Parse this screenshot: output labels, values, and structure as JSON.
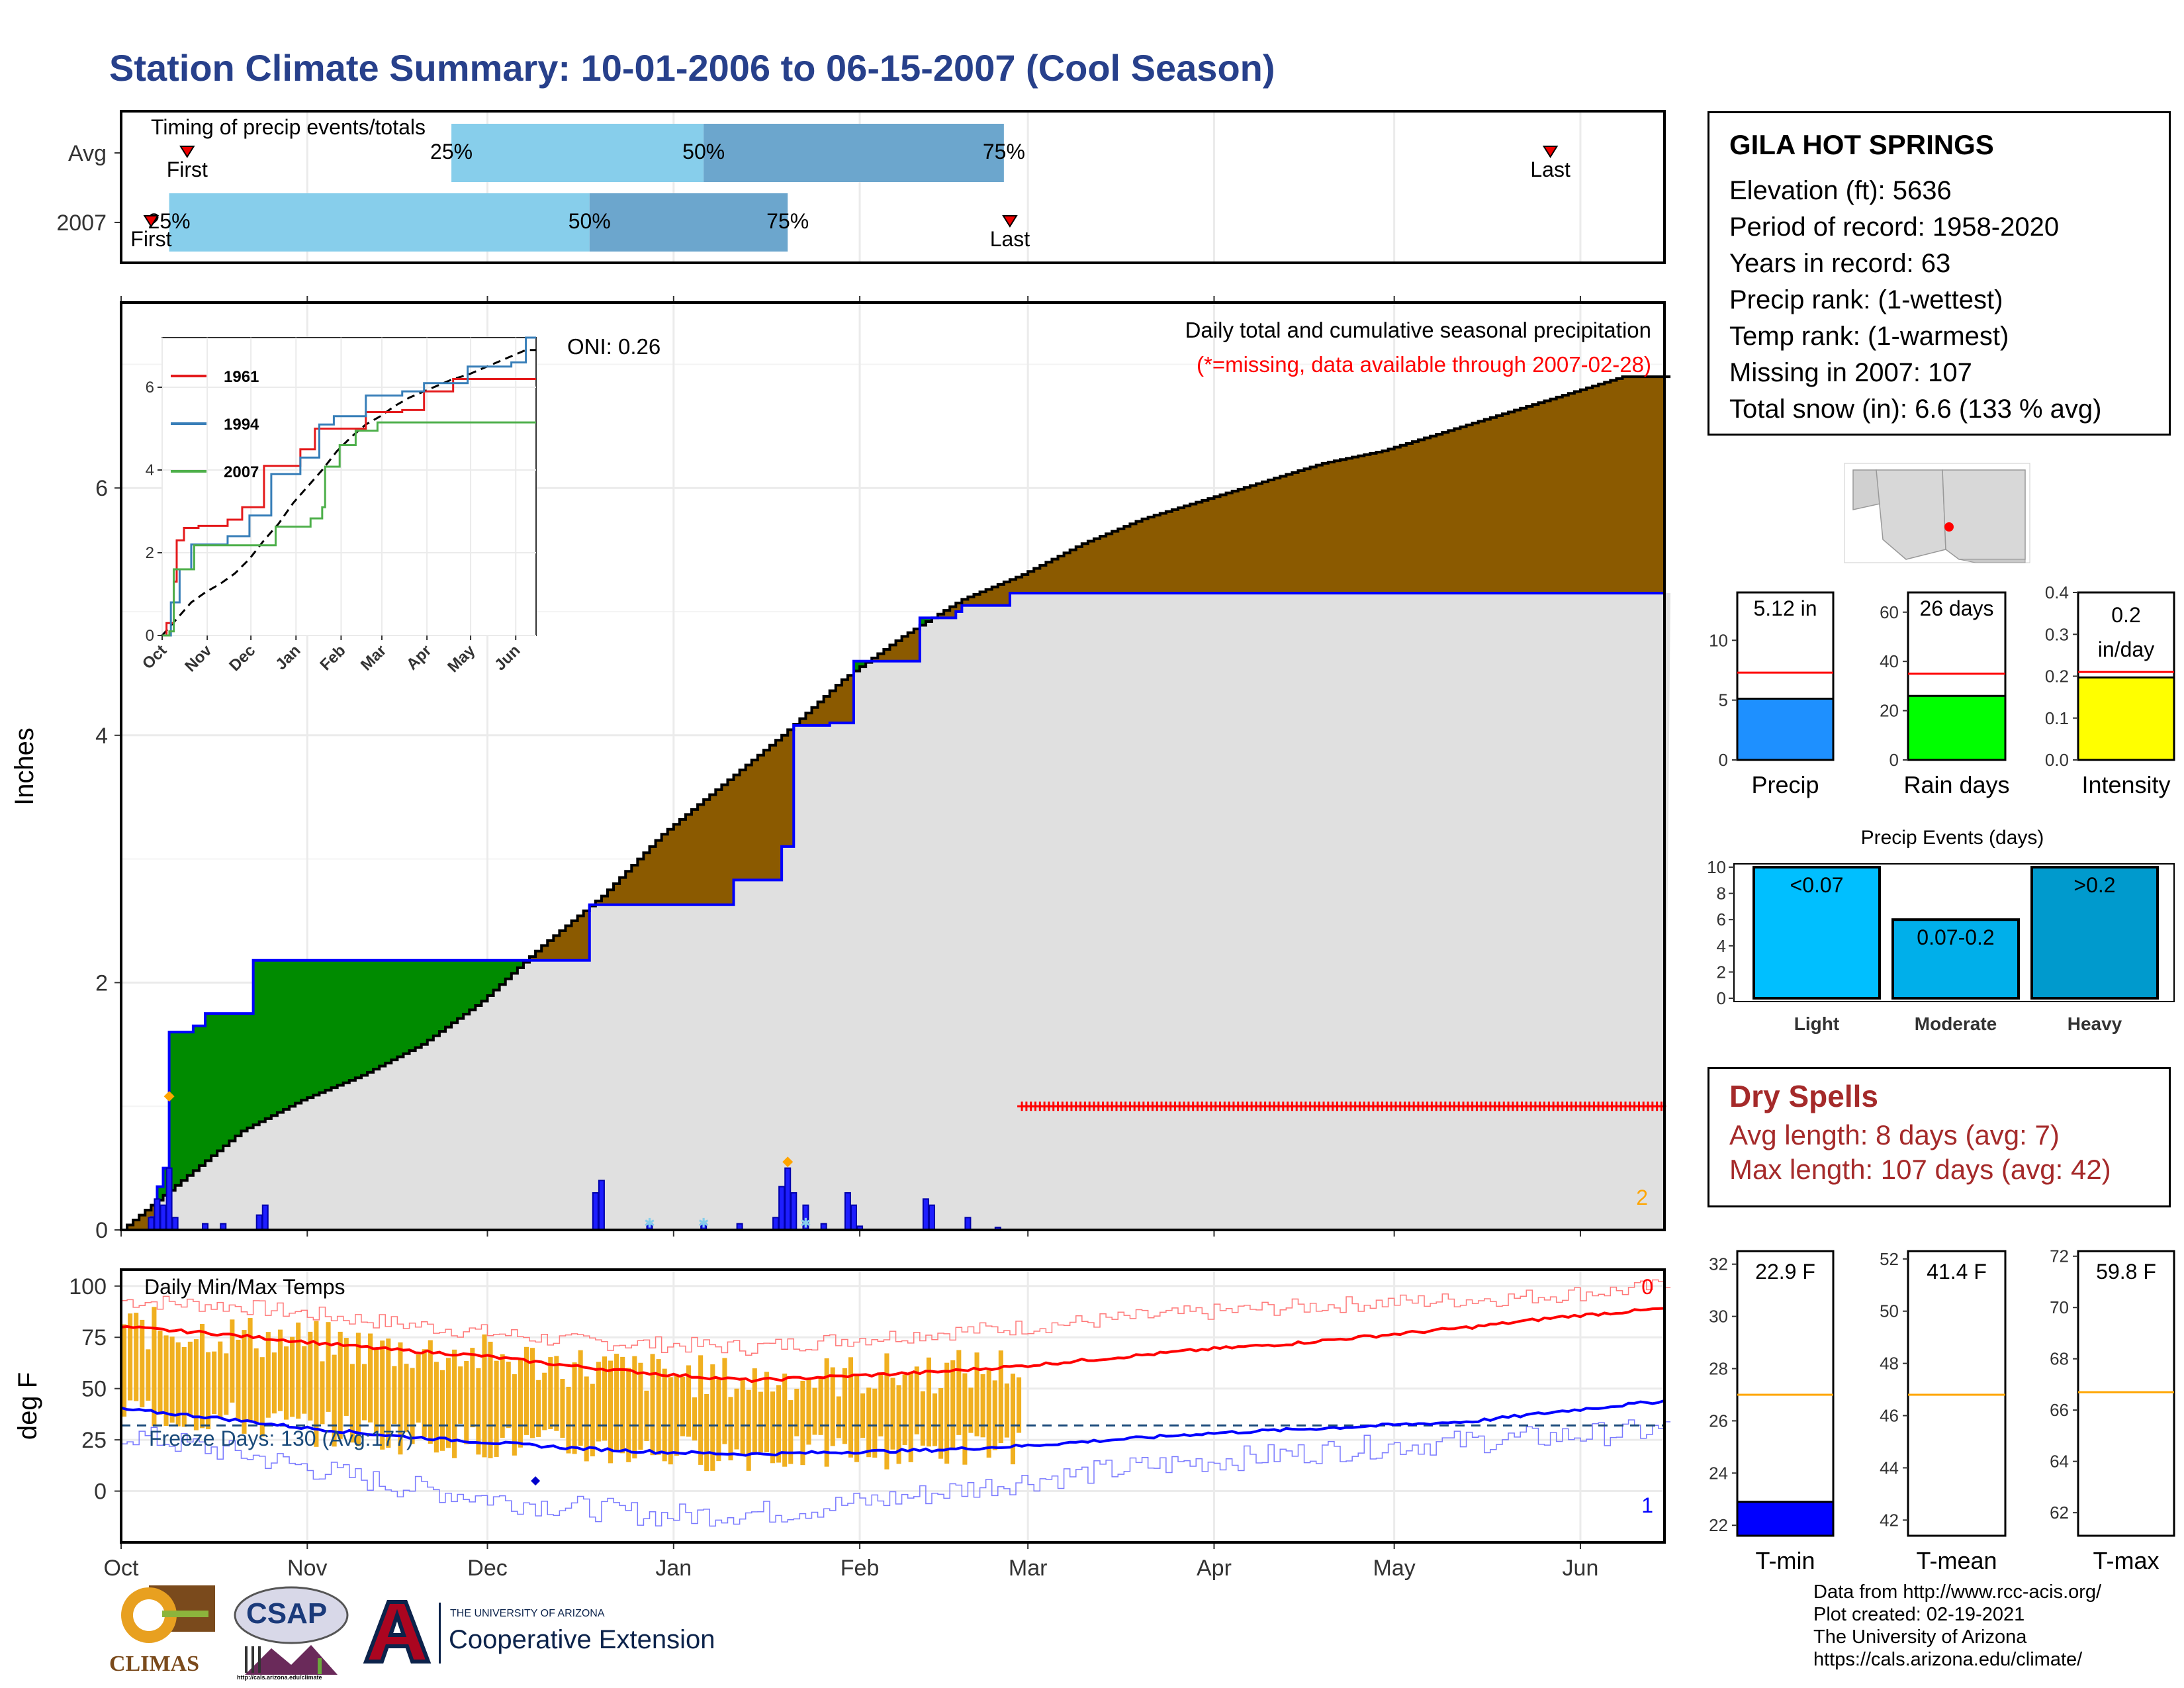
{
  "title": "Station Climate Summary: 10-01-2006 to 06-15-2007 (Cool Season)",
  "timing": {
    "label": "Timing of precip events/totals",
    "rows": [
      "Avg",
      "2007"
    ],
    "first_label": "First",
    "last_label": "Last",
    "pct_labels": [
      "25%",
      "50%",
      "75%"
    ],
    "avg": {
      "first_day": 11,
      "p25": 55,
      "p50": 97,
      "p75": 147,
      "last_day": 238
    },
    "y2007": {
      "first_day": 5,
      "p25": 8,
      "p50": 78,
      "p75": 111,
      "last_day": 148
    }
  },
  "main_plot": {
    "oni": "ONI: 0.26",
    "caption": "Daily total and cumulative seasonal precipitation",
    "missing_note": "(*=missing, data available through 2007-02-28)",
    "ylabel": "Inches",
    "yticks": [
      0,
      2,
      4,
      6
    ],
    "corner_count": "2",
    "xticks": [
      "Oct",
      "Nov",
      "Dec",
      "Jan",
      "Feb",
      "Mar",
      "Apr",
      "May",
      "Jun"
    ]
  },
  "chart_data": {
    "type": "area",
    "x_unit": "day of season starting 2006-10-01",
    "avg_cumulative": [
      [
        0,
        0
      ],
      [
        10,
        0.4
      ],
      [
        20,
        0.8
      ],
      [
        30,
        1.05
      ],
      [
        40,
        1.25
      ],
      [
        50,
        1.5
      ],
      [
        60,
        1.85
      ],
      [
        70,
        2.3
      ],
      [
        80,
        2.7
      ],
      [
        90,
        3.2
      ],
      [
        100,
        3.6
      ],
      [
        110,
        4.0
      ],
      [
        120,
        4.45
      ],
      [
        130,
        4.8
      ],
      [
        140,
        5.1
      ],
      [
        150,
        5.3
      ],
      [
        160,
        5.55
      ],
      [
        170,
        5.75
      ],
      [
        180,
        5.9
      ],
      [
        190,
        6.05
      ],
      [
        200,
        6.2
      ],
      [
        210,
        6.3
      ],
      [
        220,
        6.45
      ],
      [
        230,
        6.6
      ],
      [
        240,
        6.75
      ],
      [
        250,
        6.9
      ],
      [
        257,
        6.9
      ]
    ],
    "cumulative_2007": [
      [
        0,
        0
      ],
      [
        5,
        0.1
      ],
      [
        6,
        0.35
      ],
      [
        7,
        0.5
      ],
      [
        8,
        1.6
      ],
      [
        12,
        1.65
      ],
      [
        14,
        1.75
      ],
      [
        22,
        2.18
      ],
      [
        62,
        2.18
      ],
      [
        78,
        2.63
      ],
      [
        90,
        2.63
      ],
      [
        102,
        2.83
      ],
      [
        109,
        2.83
      ],
      [
        110,
        3.1
      ],
      [
        112,
        4.08
      ],
      [
        118,
        4.1
      ],
      [
        122,
        4.6
      ],
      [
        132,
        4.6
      ],
      [
        133,
        4.95
      ],
      [
        139,
        5.0
      ],
      [
        140,
        5.05
      ],
      [
        148,
        5.15
      ],
      [
        257,
        5.15
      ]
    ],
    "daily_2007": [
      [
        5,
        0.1
      ],
      [
        6,
        0.25
      ],
      [
        7,
        0.2
      ],
      [
        8,
        0.5
      ],
      [
        9,
        0.1
      ],
      [
        14,
        0.05
      ],
      [
        17,
        0.05
      ],
      [
        23,
        0.12
      ],
      [
        24,
        0.2
      ],
      [
        79,
        0.3
      ],
      [
        80,
        0.4
      ],
      [
        88,
        0.05
      ],
      [
        97,
        0.05
      ],
      [
        103,
        0.05
      ],
      [
        109,
        0.1
      ],
      [
        110,
        0.35
      ],
      [
        111,
        0.5
      ],
      [
        112,
        0.3
      ],
      [
        114,
        0.2
      ],
      [
        117,
        0.05
      ],
      [
        121,
        0.3
      ],
      [
        122,
        0.2
      ],
      [
        123,
        0.03
      ],
      [
        134,
        0.25
      ],
      [
        135,
        0.2
      ],
      [
        141,
        0.1
      ],
      [
        146,
        0.02
      ]
    ],
    "missing_range_days": [
      150,
      257
    ],
    "ylim": [
      0,
      7.5
    ]
  },
  "inset": {
    "series": [
      {
        "name": "1961",
        "color": "#e41a1c",
        "points": [
          [
            0,
            0
          ],
          [
            3,
            0.3
          ],
          [
            8,
            1.3
          ],
          [
            10,
            2.3
          ],
          [
            15,
            2.6
          ],
          [
            25,
            2.65
          ],
          [
            45,
            2.8
          ],
          [
            55,
            3.1
          ],
          [
            70,
            4.1
          ],
          [
            95,
            4.5
          ],
          [
            105,
            5.0
          ],
          [
            120,
            5.0
          ],
          [
            140,
            5.4
          ],
          [
            165,
            5.45
          ],
          [
            180,
            5.9
          ],
          [
            200,
            6.2
          ],
          [
            257,
            6.2
          ]
        ]
      },
      {
        "name": "1994",
        "color": "#377eb8",
        "points": [
          [
            0,
            0
          ],
          [
            6,
            0.8
          ],
          [
            12,
            1.6
          ],
          [
            20,
            2.2
          ],
          [
            45,
            2.4
          ],
          [
            60,
            2.9
          ],
          [
            75,
            3.9
          ],
          [
            95,
            4.3
          ],
          [
            108,
            5.1
          ],
          [
            118,
            5.3
          ],
          [
            140,
            5.8
          ],
          [
            165,
            5.9
          ],
          [
            180,
            6.1
          ],
          [
            210,
            6.5
          ],
          [
            240,
            6.6
          ],
          [
            250,
            7.2
          ],
          [
            257,
            7.2
          ]
        ]
      },
      {
        "name": "2007",
        "color": "#4daf4a",
        "points": [
          [
            0,
            0
          ],
          [
            5,
            0.1
          ],
          [
            8,
            1.6
          ],
          [
            22,
            2.18
          ],
          [
            62,
            2.18
          ],
          [
            78,
            2.63
          ],
          [
            102,
            2.83
          ],
          [
            110,
            3.1
          ],
          [
            112,
            4.08
          ],
          [
            122,
            4.6
          ],
          [
            133,
            4.95
          ],
          [
            148,
            5.15
          ],
          [
            257,
            5.15
          ]
        ]
      }
    ],
    "yticks": [
      "0",
      "2",
      "4",
      "6"
    ],
    "xticks": [
      "Oct",
      "Nov",
      "Dec",
      "Jan",
      "Feb",
      "Mar",
      "Apr",
      "May",
      "Jun"
    ]
  },
  "temp_plot": {
    "label": "Daily Min/Max Temps",
    "ylabel": "deg F",
    "yticks": [
      0,
      25,
      50,
      75,
      100
    ],
    "freeze_label": "Freeze Days: 130 (Avg:177)",
    "freeze_line": 32,
    "corner_top": "0",
    "corner_bottom": "1",
    "xticks": [
      "Oct",
      "Nov",
      "Dec",
      "Jan",
      "Feb",
      "Mar",
      "Apr",
      "May",
      "Jun"
    ],
    "avg_max": [
      [
        0,
        80
      ],
      [
        15,
        77
      ],
      [
        30,
        73
      ],
      [
        45,
        69
      ],
      [
        60,
        66
      ],
      [
        75,
        61
      ],
      [
        90,
        57
      ],
      [
        105,
        54
      ],
      [
        120,
        56
      ],
      [
        135,
        58
      ],
      [
        150,
        61
      ],
      [
        165,
        65
      ],
      [
        180,
        69
      ],
      [
        195,
        72
      ],
      [
        210,
        76
      ],
      [
        225,
        80
      ],
      [
        240,
        85
      ],
      [
        257,
        89
      ]
    ],
    "avg_min": [
      [
        0,
        40
      ],
      [
        15,
        36
      ],
      [
        30,
        31
      ],
      [
        45,
        27
      ],
      [
        60,
        24
      ],
      [
        75,
        21
      ],
      [
        90,
        19
      ],
      [
        105,
        18
      ],
      [
        120,
        19
      ],
      [
        135,
        20
      ],
      [
        150,
        22
      ],
      [
        165,
        25
      ],
      [
        180,
        28
      ],
      [
        195,
        30
      ],
      [
        210,
        32
      ],
      [
        225,
        34
      ],
      [
        240,
        39
      ],
      [
        257,
        44
      ]
    ],
    "record_max": [
      [
        0,
        93
      ],
      [
        20,
        90
      ],
      [
        45,
        82
      ],
      [
        75,
        73
      ],
      [
        105,
        70
      ],
      [
        120,
        74
      ],
      [
        150,
        80
      ],
      [
        170,
        85
      ],
      [
        190,
        89
      ],
      [
        210,
        92
      ],
      [
        230,
        94
      ],
      [
        250,
        98
      ],
      [
        257,
        100
      ]
    ],
    "record_min": [
      [
        0,
        28
      ],
      [
        20,
        18
      ],
      [
        45,
        3
      ],
      [
        65,
        -5
      ],
      [
        90,
        -12
      ],
      [
        110,
        -10
      ],
      [
        130,
        -3
      ],
      [
        150,
        5
      ],
      [
        170,
        12
      ],
      [
        190,
        17
      ],
      [
        210,
        22
      ],
      [
        230,
        25
      ],
      [
        257,
        30
      ]
    ],
    "data_end_day": 150
  },
  "station": {
    "name": "GILA HOT SPRINGS",
    "lines": [
      "Elevation (ft): 5636",
      "Period of record: 1958-2020",
      "Years in record: 63",
      "Precip rank:  (1-wettest)",
      "Temp rank:  (1-warmest)",
      "Missing in 2007: 107",
      "Total snow (in): 6.6 (133 % avg)"
    ]
  },
  "mini_bars": [
    {
      "label": "Precip",
      "value_text": "5.12 in",
      "value": 5.12,
      "avg": 7.3,
      "ymax": 14,
      "ticks": [
        "0",
        "5",
        "10"
      ],
      "tick_vals": [
        0,
        5,
        10
      ],
      "color": "#1e90ff"
    },
    {
      "label": "Rain days",
      "value_text": "26 days",
      "value": 26,
      "avg": 35,
      "ymax": 68,
      "ticks": [
        "0",
        "20",
        "40",
        "60"
      ],
      "tick_vals": [
        0,
        20,
        40,
        60
      ],
      "color": "#00ff00"
    },
    {
      "label": "Intensity",
      "value_text": "0.2 in/day",
      "value": 0.197,
      "avg": 0.21,
      "ymax": 0.4,
      "ticks": [
        "0.0",
        "0.1",
        "0.2",
        "0.3",
        "0.4"
      ],
      "tick_vals": [
        0,
        0.1,
        0.2,
        0.3,
        0.4
      ],
      "color": "#ffff00"
    }
  ],
  "events": {
    "title": "Precip Events (days)",
    "yticks": [
      "0",
      "2",
      "4",
      "6",
      "8",
      "10"
    ],
    "categories": [
      "Light",
      "Moderate",
      "Heavy"
    ],
    "bar_labels": [
      "<0.07",
      "0.07-0.2",
      ">0.2"
    ],
    "values": [
      10,
      6,
      10
    ],
    "colors": [
      "#00bfff",
      "#00afea",
      "#009acd"
    ]
  },
  "dry_spells": {
    "title": "Dry Spells",
    "avg": "Avg length: 8 days (avg: 7)",
    "max": "Max length: 107 days (avg: 42)"
  },
  "temp_bars": [
    {
      "label": "T-min",
      "value_text": "22.9 F",
      "value": 22.9,
      "avg": 27,
      "ymin": 21.6,
      "ymax": 32.5,
      "ticks": [
        "22",
        "24",
        "26",
        "28",
        "30",
        "32"
      ],
      "tick_vals": [
        22,
        24,
        26,
        28,
        30,
        32
      ],
      "color": "#0000ff"
    },
    {
      "label": "T-mean",
      "value_text": "41.4 F",
      "value": 41.4,
      "avg": 46.8,
      "ymin": 41.4,
      "ymax": 52.3,
      "ticks": [
        "42",
        "44",
        "46",
        "48",
        "50",
        "52"
      ],
      "tick_vals": [
        42,
        44,
        46,
        48,
        50,
        52
      ],
      "color": "#ffffff"
    },
    {
      "label": "T-max",
      "value_text": "59.8 F",
      "value": 59.8,
      "avg": 66.7,
      "ymin": 61.1,
      "ymax": 72.2,
      "ticks": [
        "62",
        "64",
        "66",
        "68",
        "70",
        "72"
      ],
      "tick_vals": [
        62,
        64,
        66,
        68,
        70,
        72
      ],
      "color": "#ffffff"
    }
  ],
  "credits": [
    "Data from http://www.rcc-acis.org/",
    "Plot created: 02-19-2021",
    "The University of Arizona",
    "https://cals.arizona.edu/climate/"
  ],
  "logos": {
    "climas": "CLIMAS",
    "csap": "CSAP",
    "csap_url": "http://cals.arizona.edu/climate",
    "ua_small": "THE UNIVERSITY OF ARIZONA",
    "ua_big": "Cooperative Extension"
  }
}
